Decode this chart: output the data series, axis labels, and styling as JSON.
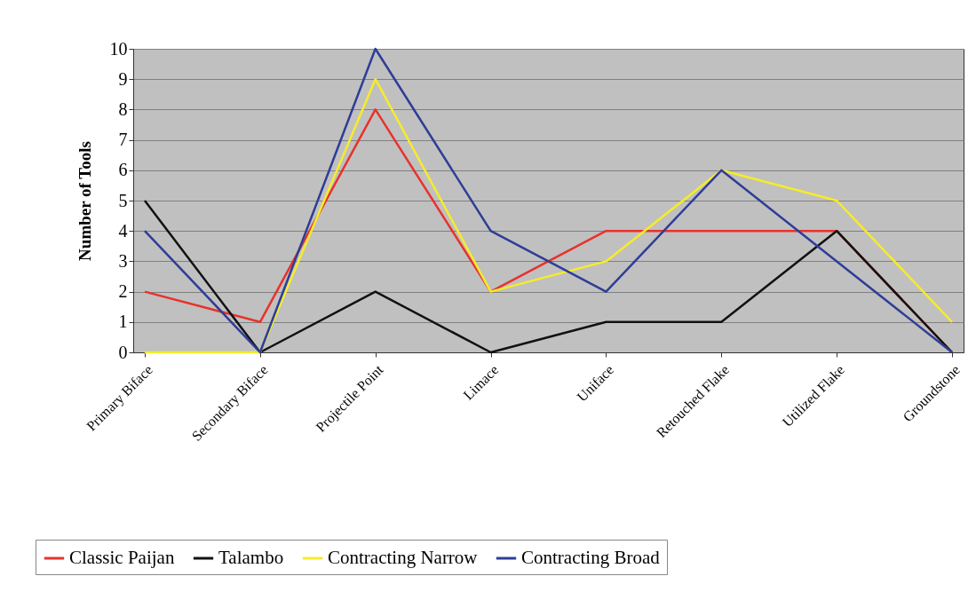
{
  "chart_data": {
    "type": "line",
    "ylabel": "Number of Tools",
    "categories": [
      "Primary Biface",
      "Secondary Biface",
      "Projectile Point",
      "Limace",
      "Uniface",
      "Retouched Flake",
      "Utilized Flake",
      "Groundstone"
    ],
    "series": [
      {
        "name": "Classic Paijan",
        "color": "#e8322c",
        "values": [
          2,
          1,
          8,
          2,
          4,
          4,
          4,
          0
        ]
      },
      {
        "name": "Talambo",
        "color": "#111111",
        "values": [
          5,
          0,
          2,
          0,
          1,
          1,
          4,
          0
        ]
      },
      {
        "name": "Contracting Narrow",
        "color": "#f5ec2a",
        "values": [
          0,
          0,
          9,
          2,
          3,
          6,
          5,
          1
        ]
      },
      {
        "name": "Contracting Broad",
        "color": "#2e3d97",
        "values": [
          4,
          0,
          10,
          4,
          2,
          6,
          3,
          0
        ]
      }
    ],
    "ylim": [
      0,
      10
    ],
    "yticks": [
      0,
      1,
      2,
      3,
      4,
      5,
      6,
      7,
      8,
      9,
      10
    ],
    "grid": "y",
    "legend": "bottom",
    "marker": "none",
    "line_style": "solid"
  }
}
